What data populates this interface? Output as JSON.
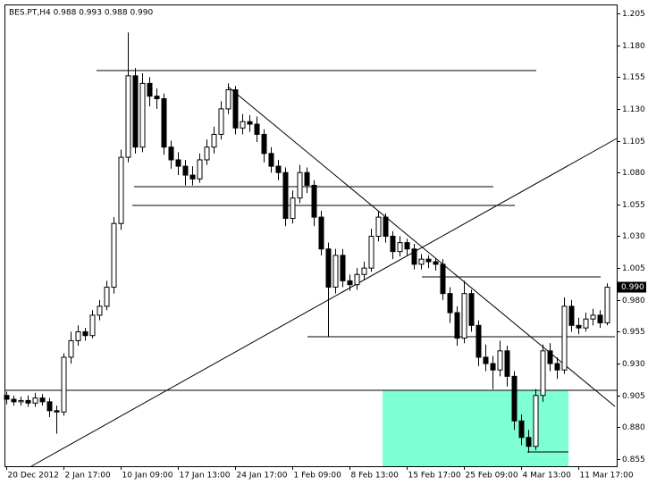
{
  "chart_data": {
    "type": "candlestick",
    "title": "BES.PT,H4  0.988 0.993 0.988 0.990",
    "x": [
      0,
      1,
      2,
      3,
      4,
      5,
      6,
      7,
      8,
      9,
      10,
      11,
      12,
      13,
      14,
      15,
      16,
      17,
      18,
      19,
      20,
      21,
      22,
      23,
      24,
      25,
      26,
      27,
      28,
      29,
      30,
      31,
      32,
      33,
      34,
      35,
      36,
      37,
      38,
      39,
      40,
      41,
      42,
      43,
      44,
      45,
      46,
      47,
      48,
      49,
      50,
      51,
      52,
      53,
      54,
      55,
      56,
      57,
      58,
      59,
      60,
      61,
      62,
      63,
      64,
      65,
      66,
      67,
      68,
      69,
      70,
      71,
      72,
      73,
      74,
      75,
      76,
      77,
      78,
      79,
      80,
      81,
      82,
      83,
      84
    ],
    "open": [
      0.905,
      0.902,
      0.9,
      0.901,
      0.899,
      0.903,
      0.9,
      0.893,
      0.892,
      0.935,
      0.948,
      0.955,
      0.952,
      0.968,
      0.975,
      0.99,
      1.04,
      1.092,
      1.156,
      1.1,
      1.15,
      1.14,
      1.138,
      1.1,
      1.09,
      1.085,
      1.078,
      1.075,
      1.09,
      1.1,
      1.11,
      1.13,
      1.145,
      1.115,
      1.12,
      1.118,
      1.11,
      1.095,
      1.085,
      1.08,
      1.044,
      1.06,
      1.08,
      1.07,
      1.045,
      1.02,
      0.99,
      1.015,
      0.995,
      0.992,
      1.0,
      1.005,
      1.03,
      1.045,
      1.03,
      1.018,
      1.025,
      1.02,
      1.008,
      1.012,
      1.01,
      1.008,
      0.985,
      0.97,
      0.95,
      0.985,
      0.96,
      0.935,
      0.93,
      0.925,
      0.94,
      0.92,
      0.885,
      0.872,
      0.865,
      0.905,
      0.94,
      0.93,
      0.925,
      0.975,
      0.96,
      0.958,
      0.965,
      0.968,
      0.962
    ],
    "high": [
      0.908,
      0.905,
      0.904,
      0.905,
      0.907,
      0.906,
      0.903,
      0.897,
      0.938,
      0.955,
      0.96,
      0.958,
      0.972,
      0.98,
      0.995,
      1.045,
      1.098,
      1.19,
      1.162,
      1.158,
      1.155,
      1.146,
      1.142,
      1.105,
      1.096,
      1.09,
      1.085,
      1.095,
      1.106,
      1.116,
      1.136,
      1.15,
      1.148,
      1.126,
      1.125,
      1.124,
      1.114,
      1.1,
      1.09,
      1.084,
      1.066,
      1.086,
      1.084,
      1.074,
      1.05,
      1.025,
      1.02,
      1.02,
      1.0,
      1.005,
      1.01,
      1.036,
      1.05,
      1.048,
      1.034,
      1.03,
      1.028,
      1.024,
      1.016,
      1.015,
      1.013,
      1.012,
      0.99,
      0.975,
      0.995,
      0.988,
      0.964,
      0.945,
      0.936,
      0.948,
      0.944,
      0.924,
      0.89,
      0.878,
      0.91,
      0.945,
      0.946,
      0.935,
      0.982,
      0.98,
      0.966,
      0.97,
      0.973,
      0.972,
      0.993
    ],
    "low": [
      0.898,
      0.897,
      0.897,
      0.896,
      0.896,
      0.897,
      0.888,
      0.875,
      0.889,
      0.93,
      0.944,
      0.948,
      0.95,
      0.964,
      0.972,
      0.985,
      1.035,
      1.088,
      1.095,
      1.096,
      1.132,
      1.13,
      1.094,
      1.083,
      1.078,
      1.07,
      1.07,
      1.072,
      1.086,
      1.095,
      1.106,
      1.126,
      1.11,
      1.11,
      1.112,
      1.104,
      1.088,
      1.08,
      1.074,
      1.038,
      1.04,
      1.056,
      1.064,
      1.038,
      1.015,
      0.951,
      0.985,
      0.99,
      0.987,
      0.988,
      0.996,
      1.002,
      1.026,
      1.025,
      1.012,
      1.014,
      1.015,
      1.004,
      1.004,
      1.005,
      1.003,
      0.98,
      0.962,
      0.944,
      0.946,
      0.955,
      0.928,
      0.924,
      0.91,
      0.92,
      0.912,
      0.878,
      0.866,
      0.86,
      0.862,
      0.9,
      0.924,
      0.918,
      0.922,
      0.955,
      0.953,
      0.955,
      0.96,
      0.958,
      0.96
    ],
    "close": [
      0.902,
      0.9,
      0.901,
      0.899,
      0.903,
      0.9,
      0.893,
      0.892,
      0.935,
      0.948,
      0.955,
      0.952,
      0.968,
      0.975,
      0.99,
      1.04,
      1.092,
      1.156,
      1.1,
      1.15,
      1.14,
      1.138,
      1.1,
      1.09,
      1.085,
      1.078,
      1.075,
      1.09,
      1.1,
      1.11,
      1.13,
      1.145,
      1.115,
      1.12,
      1.118,
      1.11,
      1.095,
      1.085,
      1.08,
      1.044,
      1.06,
      1.08,
      1.07,
      1.045,
      1.02,
      0.99,
      1.015,
      0.995,
      0.992,
      1.0,
      1.005,
      1.03,
      1.045,
      1.03,
      1.018,
      1.025,
      1.02,
      1.008,
      1.012,
      1.01,
      1.008,
      0.985,
      0.97,
      0.95,
      0.985,
      0.96,
      0.935,
      0.93,
      0.925,
      0.94,
      0.92,
      0.885,
      0.872,
      0.865,
      0.905,
      0.94,
      0.93,
      0.925,
      0.975,
      0.96,
      0.958,
      0.965,
      0.968,
      0.962,
      0.99
    ],
    "xlim": [
      -0.25,
      85.375
    ],
    "xticks": [
      {
        "value": 0,
        "label": "20 Dec 2012"
      },
      {
        "value": 8,
        "label": "2 Jan 17:00"
      },
      {
        "value": 16,
        "label": "10 Jan 09:00"
      },
      {
        "value": 24,
        "label": "17 Jan 13:00"
      },
      {
        "value": 32,
        "label": "24 Jan 17:00"
      },
      {
        "value": 40,
        "label": "1 Feb 09:00"
      },
      {
        "value": 48,
        "label": "8 Feb 13:00"
      },
      {
        "value": 56,
        "label": "15 Feb 17:00"
      },
      {
        "value": 64,
        "label": "25 Feb 09:00"
      },
      {
        "value": 72,
        "label": "4 Mar 13:00"
      },
      {
        "value": 80,
        "label": "11 Mar 17:00"
      }
    ],
    "ylim": [
      0.8494,
      1.212
    ],
    "yticks": [
      1.205,
      {
        "value": 1.18,
        "label": "1.180"
      },
      1.155,
      {
        "value": 1.13,
        "label": "1.130"
      },
      1.105,
      {
        "value": 1.08,
        "label": "1.080"
      },
      1.055,
      {
        "value": 1.03,
        "label": "1.030"
      },
      1.005,
      {
        "value": 0.98,
        "label": "0.980"
      },
      0.955,
      {
        "value": 0.93,
        "label": "0.930"
      },
      0.905,
      {
        "value": 0.88,
        "label": "0.880"
      },
      0.855
    ],
    "current_price": {
      "value": 0.99,
      "label": "0.990"
    }
  }
}
